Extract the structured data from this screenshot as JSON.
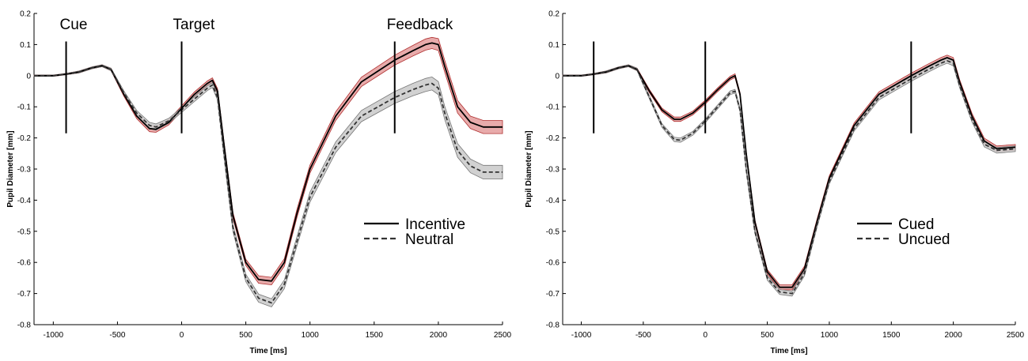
{
  "chart_data": [
    {
      "type": "line",
      "xlabel": "Time [ms]",
      "ylabel": "Pupil Diameter [mm]",
      "xlim": [
        -1150,
        2500
      ],
      "ylim": [
        -0.8,
        0.2
      ],
      "xticks": [
        -1000,
        -500,
        0,
        500,
        1000,
        1500,
        2000,
        2500
      ],
      "xtick_labels": [
        "-1000",
        "-500",
        "0",
        "500",
        "1000",
        "1500",
        "2000",
        "2500"
      ],
      "yticks": [
        0.2,
        0.1,
        0,
        -0.1,
        -0.2,
        -0.3,
        -0.4,
        -0.5,
        -0.6,
        -0.7,
        -0.8
      ],
      "ytick_labels": [
        "0.2",
        "0.1",
        "0",
        "-0.1",
        "-0.2",
        "-0.3",
        "-0.4",
        "-0.5",
        "-0.6",
        "-0.7",
        "-0.8"
      ],
      "events": [
        {
          "x": -900,
          "label": "Cue",
          "y_range": [
            -0.185,
            0.11
          ]
        },
        {
          "x": 0,
          "label": "Target",
          "y_range": [
            -0.185,
            0.11
          ]
        },
        {
          "x": 1660,
          "label": "Feedback",
          "y_range": [
            -0.185,
            0.11
          ]
        }
      ],
      "legend": {
        "position": "right-middle"
      },
      "series": [
        {
          "name": "Incentive",
          "style": "solid",
          "band_color": "#e6a2a2",
          "edge_color": "#b03030",
          "x": [
            -1150,
            -1000,
            -900,
            -800,
            -700,
            -620,
            -550,
            -450,
            -350,
            -250,
            -200,
            -100,
            0,
            100,
            200,
            240,
            280,
            330,
            400,
            500,
            600,
            700,
            800,
            900,
            1000,
            1200,
            1400,
            1660,
            1800,
            1900,
            1950,
            2000,
            2050,
            2150,
            2250,
            2350,
            2500
          ],
          "y": [
            0.0,
            0.0,
            0.005,
            0.012,
            0.025,
            0.032,
            0.02,
            -0.06,
            -0.13,
            -0.17,
            -0.172,
            -0.15,
            -0.105,
            -0.06,
            -0.025,
            -0.015,
            -0.05,
            -0.22,
            -0.45,
            -0.6,
            -0.655,
            -0.66,
            -0.6,
            -0.44,
            -0.3,
            -0.13,
            -0.02,
            0.05,
            0.08,
            0.1,
            0.105,
            0.1,
            0.03,
            -0.1,
            -0.15,
            -0.165,
            -0.165
          ],
          "band_halfwidth": [
            0.002,
            0.002,
            0.002,
            0.003,
            0.003,
            0.003,
            0.004,
            0.006,
            0.008,
            0.01,
            0.01,
            0.008,
            0.008,
            0.008,
            0.008,
            0.008,
            0.008,
            0.009,
            0.01,
            0.01,
            0.012,
            0.012,
            0.012,
            0.013,
            0.013,
            0.014,
            0.015,
            0.016,
            0.017,
            0.018,
            0.018,
            0.019,
            0.019,
            0.02,
            0.02,
            0.021,
            0.021
          ]
        },
        {
          "name": "Neutral",
          "style": "dashed",
          "band_color": "#cccccc",
          "edge_color": "#777777",
          "x": [
            -1150,
            -1000,
            -900,
            -800,
            -700,
            -620,
            -550,
            -450,
            -350,
            -250,
            -200,
            -100,
            0,
            100,
            200,
            240,
            280,
            330,
            400,
            500,
            600,
            700,
            800,
            900,
            1000,
            1200,
            1400,
            1660,
            1800,
            1900,
            1950,
            2000,
            2050,
            2150,
            2250,
            2350,
            2500
          ],
          "y": [
            0.0,
            0.0,
            0.005,
            0.012,
            0.025,
            0.032,
            0.02,
            -0.055,
            -0.12,
            -0.16,
            -0.165,
            -0.145,
            -0.11,
            -0.075,
            -0.04,
            -0.03,
            -0.07,
            -0.25,
            -0.49,
            -0.65,
            -0.715,
            -0.73,
            -0.67,
            -0.53,
            -0.39,
            -0.23,
            -0.13,
            -0.07,
            -0.045,
            -0.03,
            -0.025,
            -0.04,
            -0.12,
            -0.24,
            -0.29,
            -0.31,
            -0.31
          ],
          "band_halfwidth": [
            0.002,
            0.002,
            0.002,
            0.003,
            0.003,
            0.003,
            0.004,
            0.006,
            0.008,
            0.01,
            0.01,
            0.008,
            0.008,
            0.008,
            0.008,
            0.008,
            0.009,
            0.01,
            0.011,
            0.012,
            0.013,
            0.013,
            0.014,
            0.015,
            0.016,
            0.017,
            0.018,
            0.019,
            0.02,
            0.021,
            0.021,
            0.021,
            0.021,
            0.022,
            0.022,
            0.022,
            0.022
          ]
        }
      ]
    },
    {
      "type": "line",
      "xlabel": "Time [ms]",
      "ylabel": "Pupil Diameter [mm]",
      "xlim": [
        -1150,
        2500
      ],
      "ylim": [
        -0.8,
        0.2
      ],
      "xticks": [
        -1000,
        -500,
        0,
        500,
        1000,
        1500,
        2000,
        2500
      ],
      "xtick_labels": [
        "-1000",
        "-500",
        "0",
        "500",
        "1000",
        "1500",
        "2000",
        "2500"
      ],
      "yticks": [
        0.2,
        0.1,
        0,
        -0.1,
        -0.2,
        -0.3,
        -0.4,
        -0.5,
        -0.6,
        -0.7,
        -0.8
      ],
      "ytick_labels": [
        "0.2",
        "0.1",
        "0",
        "-0.1",
        "-0.2",
        "-0.3",
        "-0.4",
        "-0.5",
        "-0.6",
        "-0.7",
        "-0.8"
      ],
      "events": [
        {
          "x": -900,
          "label": "",
          "y_range": [
            -0.185,
            0.11
          ]
        },
        {
          "x": 0,
          "label": "",
          "y_range": [
            -0.185,
            0.11
          ]
        },
        {
          "x": 1660,
          "label": "",
          "y_range": [
            -0.185,
            0.11
          ]
        }
      ],
      "legend": {
        "position": "right-middle"
      },
      "series": [
        {
          "name": "Cued",
          "style": "solid",
          "band_color": "#e6a2a2",
          "edge_color": "#b03030",
          "x": [
            -1150,
            -1000,
            -900,
            -800,
            -700,
            -620,
            -550,
            -450,
            -350,
            -250,
            -200,
            -100,
            0,
            100,
            200,
            240,
            280,
            330,
            400,
            500,
            600,
            700,
            800,
            900,
            1000,
            1200,
            1400,
            1660,
            1800,
            1900,
            1950,
            2000,
            2050,
            2150,
            2250,
            2350,
            2500
          ],
          "y": [
            0.0,
            0.0,
            0.005,
            0.012,
            0.025,
            0.032,
            0.02,
            -0.05,
            -0.11,
            -0.14,
            -0.14,
            -0.12,
            -0.085,
            -0.045,
            -0.008,
            0.0,
            -0.06,
            -0.25,
            -0.47,
            -0.63,
            -0.68,
            -0.68,
            -0.62,
            -0.47,
            -0.33,
            -0.16,
            -0.06,
            0.0,
            0.03,
            0.05,
            0.058,
            0.05,
            -0.02,
            -0.13,
            -0.21,
            -0.235,
            -0.23
          ],
          "band_halfwidth": [
            0.002,
            0.002,
            0.002,
            0.003,
            0.003,
            0.003,
            0.004,
            0.005,
            0.006,
            0.007,
            0.007,
            0.006,
            0.006,
            0.006,
            0.006,
            0.006,
            0.006,
            0.006,
            0.007,
            0.007,
            0.008,
            0.008,
            0.008,
            0.008,
            0.008,
            0.008,
            0.008,
            0.008,
            0.008,
            0.008,
            0.008,
            0.008,
            0.008,
            0.009,
            0.009,
            0.009,
            0.009
          ]
        },
        {
          "name": "Uncued",
          "style": "dashed",
          "band_color": "#cccccc",
          "edge_color": "#777777",
          "x": [
            -1150,
            -1000,
            -900,
            -800,
            -700,
            -620,
            -550,
            -450,
            -350,
            -250,
            -200,
            -100,
            0,
            100,
            200,
            240,
            280,
            330,
            400,
            500,
            600,
            700,
            800,
            900,
            1000,
            1200,
            1400,
            1660,
            1800,
            1900,
            1950,
            2000,
            2050,
            2150,
            2250,
            2350,
            2500
          ],
          "y": [
            0.0,
            0.0,
            0.005,
            0.012,
            0.025,
            0.032,
            0.02,
            -0.07,
            -0.16,
            -0.205,
            -0.207,
            -0.185,
            -0.145,
            -0.1,
            -0.055,
            -0.05,
            -0.11,
            -0.3,
            -0.5,
            -0.65,
            -0.695,
            -0.7,
            -0.635,
            -0.48,
            -0.34,
            -0.17,
            -0.07,
            -0.01,
            0.02,
            0.04,
            0.048,
            0.04,
            -0.03,
            -0.14,
            -0.22,
            -0.24,
            -0.235
          ],
          "band_halfwidth": [
            0.002,
            0.002,
            0.002,
            0.003,
            0.003,
            0.003,
            0.004,
            0.005,
            0.006,
            0.007,
            0.007,
            0.006,
            0.006,
            0.006,
            0.006,
            0.006,
            0.006,
            0.006,
            0.007,
            0.007,
            0.008,
            0.008,
            0.008,
            0.008,
            0.008,
            0.008,
            0.008,
            0.008,
            0.008,
            0.008,
            0.008,
            0.008,
            0.008,
            0.009,
            0.009,
            0.009,
            0.009
          ]
        }
      ]
    }
  ]
}
